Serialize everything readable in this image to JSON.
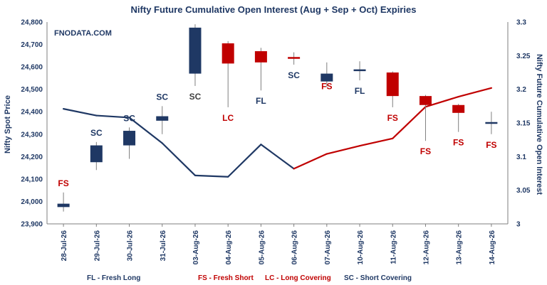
{
  "chart_data": {
    "type": "candlestick+line",
    "title": "Nifty Future Cumulative Open Interest (Aug + Sep + Oct) Expiries",
    "watermark": "FNODATA.COM",
    "ylabel": "Nifty Spot Price",
    "y2label": "Nifty Future Cumulative Open Interest",
    "ylim": [
      23900,
      24800
    ],
    "y2lim": [
      3,
      3.3
    ],
    "yticks": [
      "24,800",
      "24,700",
      "24,600",
      "24,500",
      "24,400",
      "24,300",
      "24,200",
      "24,100",
      "24,000",
      "23,900"
    ],
    "yticks_values": [
      24800,
      24700,
      24600,
      24500,
      24400,
      24300,
      24200,
      24100,
      24000,
      23900
    ],
    "y2ticks": [
      "3.3",
      "3.25",
      "3.2",
      "3.15",
      "3.1",
      "3.05",
      "3"
    ],
    "y2ticks_values": [
      3.3,
      3.25,
      3.2,
      3.15,
      3.1,
      3.05,
      3
    ],
    "categories": [
      "28-Jul-26",
      "29-Jul-26",
      "30-Jul-26",
      "31-Jul-26",
      "03-Aug-26",
      "04-Aug-26",
      "05-Aug-26",
      "06-Aug-26",
      "07-Aug-26",
      "10-Aug-26",
      "11-Aug-26",
      "12-Aug-26",
      "13-Aug-26",
      "14-Aug-26"
    ],
    "candles": [
      {
        "open": 23975,
        "close": 23990,
        "high": 24040,
        "low": 23955,
        "color": "#1f3864"
      },
      {
        "open": 24175,
        "close": 24250,
        "high": 24265,
        "low": 24140,
        "color": "#1f3864"
      },
      {
        "open": 24250,
        "close": 24315,
        "high": 24330,
        "low": 24190,
        "color": "#1f3864"
      },
      {
        "open": 24360,
        "close": 24380,
        "high": 24425,
        "low": 24300,
        "color": "#1f3864"
      },
      {
        "open": 24570,
        "close": 24775,
        "high": 24790,
        "low": 24515,
        "color": "#1f3864"
      },
      {
        "open": 24705,
        "close": 24615,
        "high": 24715,
        "low": 24420,
        "color": "#c00000"
      },
      {
        "open": 24670,
        "close": 24620,
        "high": 24685,
        "low": 24495,
        "color": "#c00000"
      },
      {
        "open": 24640,
        "close": 24640,
        "high": 24665,
        "low": 24610,
        "color": "#c00000"
      },
      {
        "open": 24535,
        "close": 24570,
        "high": 24620,
        "low": 24510,
        "color": "#1f3864"
      },
      {
        "open": 24585,
        "close": 24585,
        "high": 24625,
        "low": 24540,
        "color": "#1f3864"
      },
      {
        "open": 24575,
        "close": 24470,
        "high": 24580,
        "low": 24420,
        "color": "#c00000"
      },
      {
        "open": 24470,
        "close": 24430,
        "high": 24475,
        "low": 24270,
        "color": "#c00000"
      },
      {
        "open": 24430,
        "close": 24395,
        "high": 24435,
        "low": 24310,
        "color": "#c00000"
      },
      {
        "open": 24350,
        "close": 24350,
        "high": 24400,
        "low": 24300,
        "color": "#1f3864"
      }
    ],
    "series": [
      {
        "name": "Nifty Future Cumulative Open Interest",
        "axis": "right",
        "values": [
          3.171,
          3.161,
          3.158,
          3.12,
          3.072,
          3.07,
          3.118,
          3.082,
          3.104,
          3.116,
          3.127,
          3.174,
          3.189,
          3.202
        ],
        "colors": [
          "#1f3864",
          "#1f3864",
          "#1f3864",
          "#1f3864",
          "#1f3864",
          "#1f3864",
          "#1f3864",
          "#c00000",
          "#c00000",
          "#c00000",
          "#c00000",
          "#c00000",
          "#c00000"
        ]
      }
    ],
    "annotations": [
      {
        "text": "FS",
        "x": "28-Jul-26",
        "color": "#c00000",
        "pos": "above",
        "y": 24040
      },
      {
        "text": "SC",
        "x": "29-Jul-26",
        "color": "#1f3864",
        "pos": "above",
        "y": 24265
      },
      {
        "text": "SC",
        "x": "30-Jul-26",
        "color": "#1f3864",
        "pos": "above",
        "y": 24330
      },
      {
        "text": "SC",
        "x": "31-Jul-26",
        "color": "#1f3864",
        "pos": "above",
        "y": 24425
      },
      {
        "text": "SC",
        "x": "03-Aug-26",
        "color": "#404040",
        "pos": "below",
        "y": 24515
      },
      {
        "text": "LC",
        "x": "04-Aug-26",
        "color": "#c00000",
        "pos": "below",
        "y": 24420
      },
      {
        "text": "FL",
        "x": "05-Aug-26",
        "color": "#1f3864",
        "pos": "below",
        "y": 24495
      },
      {
        "text": "SC",
        "x": "06-Aug-26",
        "color": "#1f3864",
        "pos": "below",
        "y": 24610
      },
      {
        "text": "FS",
        "x": "07-Aug-26",
        "color": "#c00000",
        "pos": "below",
        "y": 24560
      },
      {
        "text": "FL",
        "x": "10-Aug-26",
        "color": "#1f3864",
        "pos": "below",
        "y": 24540
      },
      {
        "text": "FS",
        "x": "11-Aug-26",
        "color": "#c00000",
        "pos": "below",
        "y": 24420
      },
      {
        "text": "FS",
        "x": "12-Aug-26",
        "color": "#c00000",
        "pos": "below",
        "y": 24270
      },
      {
        "text": "FS",
        "x": "13-Aug-26",
        "color": "#c00000",
        "pos": "below",
        "y": 24310
      },
      {
        "text": "FS",
        "x": "14-Aug-26",
        "color": "#c00000",
        "pos": "below",
        "y": 24300
      }
    ],
    "legend": [
      {
        "text": "FL - Fresh Long",
        "color": "#1f3864"
      },
      {
        "text": "FS - Fresh Short",
        "color": "#c00000"
      },
      {
        "text": "LC - Long Covering",
        "color": "#c00000"
      },
      {
        "text": "SC - Short Covering",
        "color": "#1f3864"
      }
    ],
    "legend_position": "bottom",
    "grid": false
  }
}
